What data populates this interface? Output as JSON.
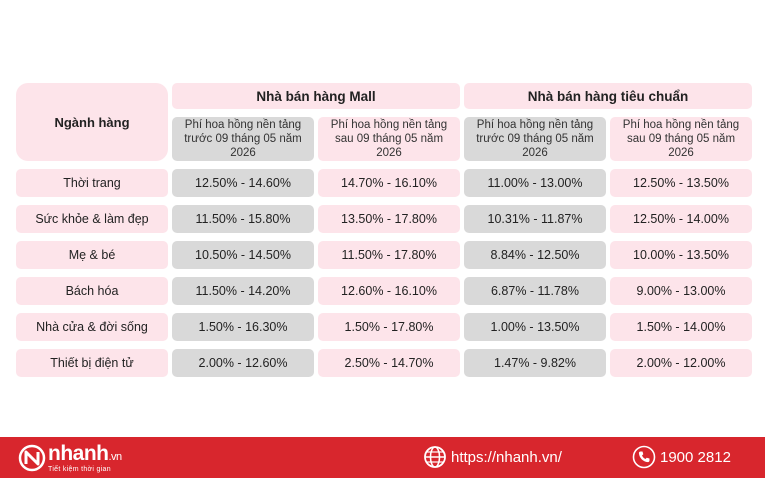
{
  "table": {
    "corner_label": "Ngành hàng",
    "groups": [
      {
        "title": "Nhà bán hàng Mall",
        "sub": [
          "Phí hoa hồng nền tảng trước 09 tháng 05 năm 2026",
          "Phí hoa hồng nền tảng sau 09 tháng 05 năm 2026"
        ]
      },
      {
        "title": "Nhà bán hàng tiêu chuẩn",
        "sub": [
          "Phí hoa hồng nền tảng trước 09 tháng 05 năm 2026",
          "Phí hoa hồng nền tảng sau 09 tháng 05 năm 2026"
        ]
      }
    ],
    "rows": [
      {
        "category": "Thời trang",
        "values": [
          "12.50% - 14.60%",
          "14.70% - 16.10%",
          "11.00% - 13.00%",
          "12.50% - 13.50%"
        ]
      },
      {
        "category": "Sức khỏe & làm đẹp",
        "values": [
          "11.50% - 15.80%",
          "13.50% - 17.80%",
          "10.31% - 11.87%",
          "12.50% - 14.00%"
        ]
      },
      {
        "category": "Mẹ & bé",
        "values": [
          "10.50% - 14.50%",
          "11.50% - 17.80%",
          "8.84% - 12.50%",
          "10.00% - 13.50%"
        ]
      },
      {
        "category": "Bách hóa",
        "values": [
          "11.50% - 14.20%",
          "12.60% - 16.10%",
          "6.87% - 11.78%",
          "9.00% - 13.00%"
        ]
      },
      {
        "category": "Nhà cửa & đời sống",
        "values": [
          "1.50% - 16.30%",
          "1.50% - 17.80%",
          "1.00% - 13.50%",
          "1.50% - 14.00%"
        ]
      },
      {
        "category": "Thiết bị điện tử",
        "values": [
          "2.00% - 12.60%",
          "2.50% - 14.70%",
          "1.47% - 9.82%",
          "2.00% - 12.00%"
        ]
      }
    ]
  },
  "footer": {
    "brand": "nhanh",
    "brand_suffix": ".vn",
    "slogan": "Tiết kiệm thời gian",
    "website": "https://nhanh.vn/",
    "phone": "1900 2812",
    "background_color": "#d8262d",
    "icons": {
      "logo": "nhanh-logo-icon",
      "website": "globe-icon",
      "phone": "phone-icon"
    }
  }
}
